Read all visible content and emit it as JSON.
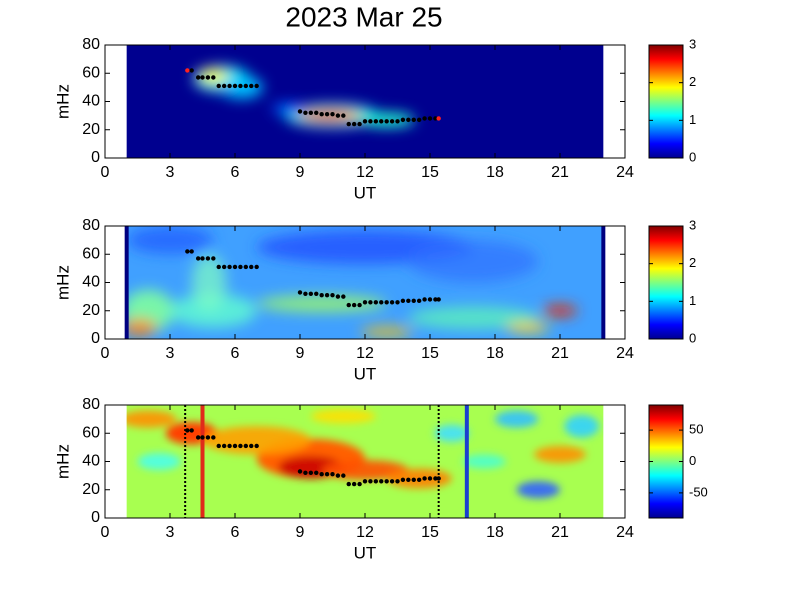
{
  "title": "2023 Mar 25",
  "chart_data": [
    {
      "type": "scatter",
      "xlabel": "UT",
      "ylabel": "mHz",
      "xlim": [
        0,
        24
      ],
      "xticks": [
        0,
        3,
        6,
        9,
        12,
        15,
        18,
        21,
        24
      ],
      "ylim": [
        0,
        80
      ],
      "yticks": [
        0,
        20,
        40,
        60,
        80
      ],
      "color": "#000000",
      "endpoint_color": "#ff2020",
      "x": [
        3.8,
        4.0,
        4.3,
        4.5,
        4.75,
        5.0,
        5.25,
        5.5,
        5.75,
        6.0,
        6.25,
        6.5,
        6.75,
        7.0,
        9.0,
        9.25,
        9.5,
        9.75,
        10.0,
        10.25,
        10.5,
        10.75,
        11.0,
        11.25,
        11.5,
        11.75,
        12.0,
        12.25,
        12.5,
        12.75,
        13.0,
        13.25,
        13.5,
        13.75,
        14.0,
        14.25,
        14.5,
        14.75,
        15.0,
        15.25,
        15.4
      ],
      "y": [
        62,
        62,
        57,
        57,
        57,
        57,
        51,
        51,
        51,
        51,
        51,
        51,
        51,
        51,
        33,
        32,
        32,
        32,
        31,
        31,
        31,
        30,
        30,
        24,
        24,
        24,
        26,
        26,
        26,
        26,
        26,
        26,
        26,
        27,
        27,
        27,
        27,
        28,
        28,
        28,
        28
      ],
      "colorbar": {
        "clim": [
          0,
          3
        ],
        "ticks": [
          0,
          1,
          2,
          3
        ]
      }
    },
    {
      "type": "scatter",
      "xlabel": "UT",
      "ylabel": "mHz",
      "xlim": [
        0,
        24
      ],
      "xticks": [
        0,
        3,
        6,
        9,
        12,
        15,
        18,
        21,
        24
      ],
      "ylim": [
        0,
        80
      ],
      "yticks": [
        0,
        20,
        40,
        60,
        80
      ],
      "color": "#000000",
      "endpoint_color": "#000000",
      "x": [
        3.8,
        4.0,
        4.3,
        4.5,
        4.75,
        5.0,
        5.25,
        5.5,
        5.75,
        6.0,
        6.25,
        6.5,
        6.75,
        7.0,
        9.0,
        9.25,
        9.5,
        9.75,
        10.0,
        10.25,
        10.5,
        10.75,
        11.0,
        11.25,
        11.5,
        11.75,
        12.0,
        12.25,
        12.5,
        12.75,
        13.0,
        13.25,
        13.5,
        13.75,
        14.0,
        14.25,
        14.5,
        14.75,
        15.0,
        15.25,
        15.4
      ],
      "y": [
        62,
        62,
        57,
        57,
        57,
        57,
        51,
        51,
        51,
        51,
        51,
        51,
        51,
        51,
        33,
        32,
        32,
        32,
        31,
        31,
        31,
        30,
        30,
        24,
        24,
        24,
        26,
        26,
        26,
        26,
        26,
        26,
        26,
        27,
        27,
        27,
        27,
        28,
        28,
        28,
        28
      ],
      "colorbar": {
        "clim": [
          0,
          3
        ],
        "ticks": [
          0,
          1,
          2,
          3
        ]
      }
    },
    {
      "type": "scatter",
      "xlabel": "UT",
      "ylabel": "mHz",
      "xlim": [
        0,
        24
      ],
      "xticks": [
        0,
        3,
        6,
        9,
        12,
        15,
        18,
        21,
        24
      ],
      "ylim": [
        0,
        80
      ],
      "yticks": [
        0,
        20,
        40,
        60,
        80
      ],
      "color": "#000000",
      "endpoint_color": "#000000",
      "x": [
        3.8,
        4.0,
        4.3,
        4.5,
        4.75,
        5.0,
        5.25,
        5.5,
        5.75,
        6.0,
        6.25,
        6.5,
        6.75,
        7.0,
        9.0,
        9.25,
        9.5,
        9.75,
        10.0,
        10.25,
        10.5,
        10.75,
        11.0,
        11.25,
        11.5,
        11.75,
        12.0,
        12.25,
        12.5,
        12.75,
        13.0,
        13.25,
        13.5,
        13.75,
        14.0,
        14.25,
        14.5,
        14.75,
        15.0,
        15.25,
        15.4
      ],
      "y": [
        62,
        62,
        57,
        57,
        57,
        57,
        51,
        51,
        51,
        51,
        51,
        51,
        51,
        51,
        33,
        32,
        32,
        32,
        31,
        31,
        31,
        30,
        30,
        24,
        24,
        24,
        26,
        26,
        26,
        26,
        26,
        26,
        26,
        27,
        27,
        27,
        27,
        28,
        28,
        28,
        28
      ],
      "vlines": {
        "x": [
          3.7,
          4.5,
          15.4,
          16.7
        ],
        "colors": [
          "#000000",
          "#e02a1a",
          "#000000",
          "#1a3fd0"
        ],
        "dashed": [
          true,
          false,
          true,
          false
        ]
      },
      "colorbar": {
        "clim": [
          -90,
          90
        ],
        "ticks": [
          -50,
          0,
          50
        ]
      }
    }
  ]
}
